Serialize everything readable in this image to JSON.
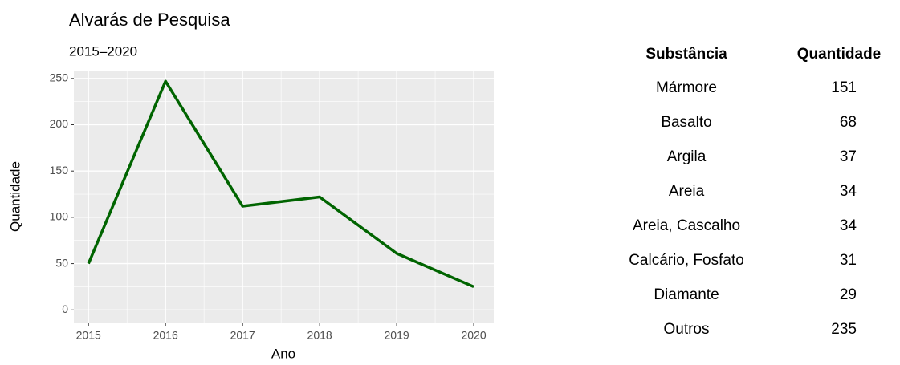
{
  "chart_data": {
    "type": "line",
    "title": "Alvarás de Pesquisa",
    "subtitle": "2015–2020",
    "x_label": "Ano",
    "y_label": "Quantidade",
    "x": [
      2015,
      2016,
      2017,
      2018,
      2019,
      2020
    ],
    "series": [
      {
        "name": "Quantidade",
        "color": "#006400",
        "values": [
          50,
          247,
          112,
          122,
          61,
          25
        ]
      }
    ],
    "xlim": [
      2014.81,
      2020.26
    ],
    "xticks": [
      2015,
      2016,
      2017,
      2018,
      2019,
      2020
    ],
    "ylim": [
      -14.5,
      258.5
    ],
    "yticks": [
      0,
      50,
      100,
      150,
      200,
      250
    ],
    "grid": true
  },
  "table": {
    "header": [
      "Substância",
      "Quantidade"
    ],
    "rows": [
      [
        "Mármore",
        "151"
      ],
      [
        "Basalto",
        "68"
      ],
      [
        "Argila",
        "37"
      ],
      [
        "Areia",
        "34"
      ],
      [
        "Areia, Cascalho",
        "34"
      ],
      [
        "Calcário, Fosfato",
        "31"
      ],
      [
        "Diamante",
        "29"
      ],
      [
        "Outros",
        "235"
      ]
    ]
  }
}
